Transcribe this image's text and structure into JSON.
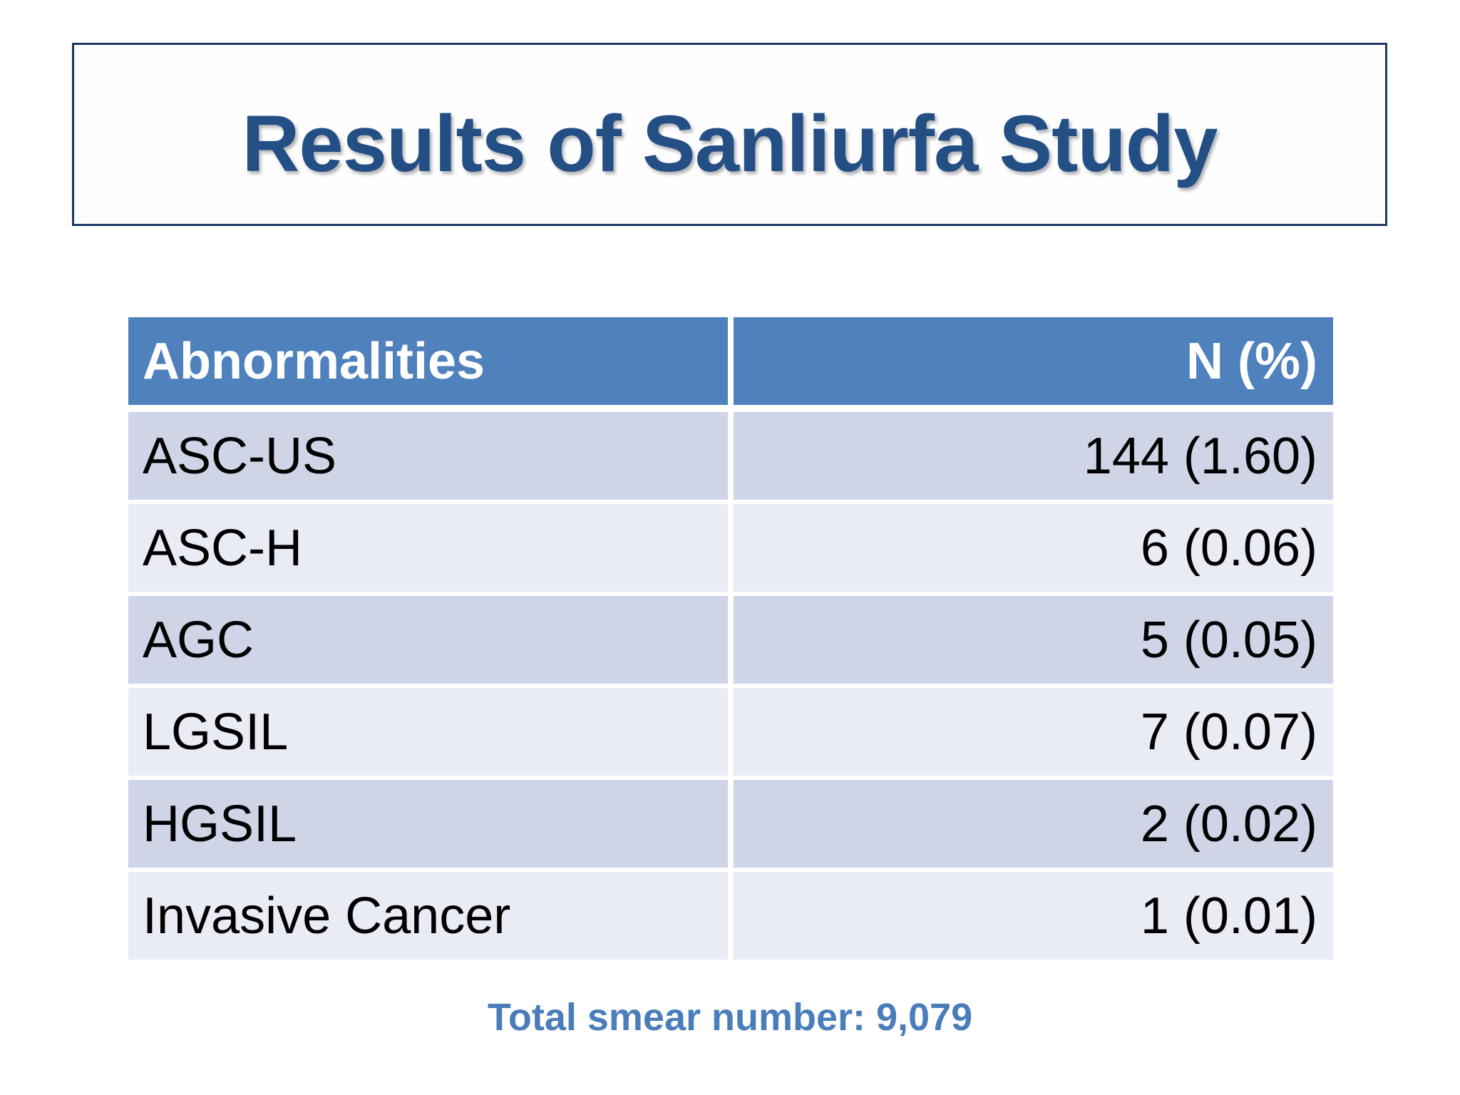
{
  "title": "Results of Sanliurfa Study",
  "table": {
    "headers": [
      "Abnormalities",
      "N (%)"
    ],
    "rows": [
      {
        "label": "ASC-US",
        "value": "144 (1.60)"
      },
      {
        "label": "ASC-H",
        "value": "6 (0.06)"
      },
      {
        "label": "AGC",
        "value": "5 (0.05)"
      },
      {
        "label": "LGSIL",
        "value": "7 (0.07)"
      },
      {
        "label": "HGSIL",
        "value": "2 (0.02)"
      },
      {
        "label": "Invasive Cancer",
        "value": "1 (0.01)"
      }
    ]
  },
  "footer": "Total smear number: 9,079",
  "colors": {
    "header_bg": "#4f81bd",
    "header_text": "#ffffff",
    "row_dark": "#cfd4e6",
    "row_light": "#e9ebf5",
    "row_text": "#000000",
    "title_text": "#234f85",
    "title_border": "#1f3864",
    "footer_text": "#4a7ebb"
  }
}
